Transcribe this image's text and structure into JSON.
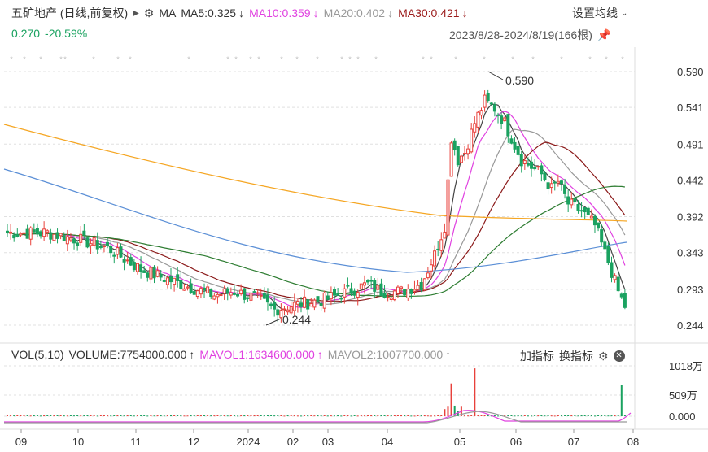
{
  "header": {
    "title": "五矿地产 (日线,前复权)",
    "ma_label": "MA",
    "ma5": "MA5:0.325",
    "ma10": "MA10:0.359",
    "ma20": "MA20:0.402",
    "ma30": "MA30:0.421",
    "settings_label": "设置均线",
    "price": "0.270",
    "change": "-20.59%",
    "date_range": "2023/8/28-2024/8/19(166根)"
  },
  "volume_header": {
    "vol_label": "VOL(5,10)",
    "volume": "VOLUME:7754000.000",
    "mavol1": "MAVOL1:1634600.000",
    "mavol2": "MAVOL2:1007700.000",
    "add_indicator": "加指标",
    "switch_indicator": "换指标"
  },
  "colors": {
    "up": "#e8413b",
    "down": "#1aa260",
    "ma5": "#444444",
    "ma10": "#e040e0",
    "ma20": "#999999",
    "ma30": "#8b1a1a",
    "ma60": "#2e7d32",
    "ma120": "#5b8fd6",
    "ma250": "#f5a623"
  },
  "chart_data": {
    "type": "candlestick",
    "y_ticks": [
      "0.590",
      "0.541",
      "0.491",
      "0.442",
      "0.392",
      "0.343",
      "0.293",
      "0.244"
    ],
    "ylim": [
      0.224,
      0.608
    ],
    "x_ticks": [
      "09",
      "10",
      "11",
      "12",
      "2024",
      "02",
      "03",
      "04",
      "05",
      "06",
      "07",
      "08"
    ],
    "annotations": [
      "0.590",
      "0.244"
    ],
    "volume_ticks": [
      "1018万",
      "509万",
      "0.000"
    ],
    "high_marker": 0.59,
    "low_marker": 0.244
  }
}
